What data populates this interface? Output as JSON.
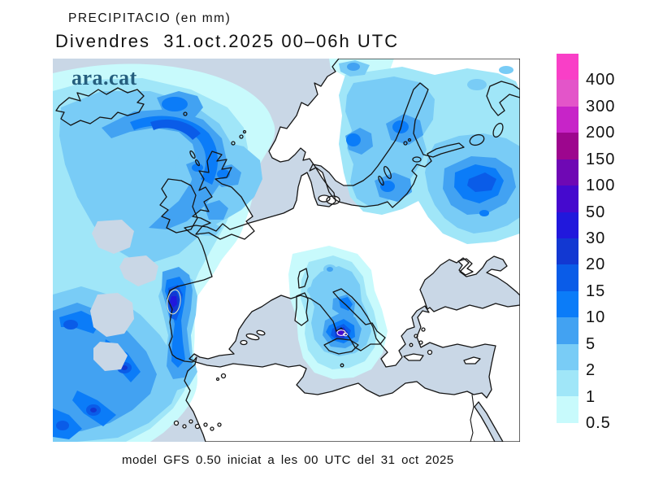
{
  "header": {
    "title_line1": "PRECIPITACIO (en mm)",
    "title_line2": "Divendres  31.oct.2025 00–06h UTC"
  },
  "footer": {
    "caption": "model GFS 0.50 iniciat a les 00 UTC del 31 oct 2025"
  },
  "map": {
    "watermark": "ara.cat",
    "watermark_color": "#255E7E",
    "sea_color": "#C9D7E6",
    "land_color": "#FFFFFF",
    "coast_color": "#151515",
    "contour_ring_color_low": "#E6E6C0",
    "contour_ring_color_high": "#FFFFFF"
  },
  "colorbar": {
    "units": "mm",
    "levels": [
      "400",
      "300",
      "200",
      "150",
      "100",
      "50",
      "30",
      "20",
      "15",
      "10",
      "5",
      "2",
      "1",
      "0.5"
    ],
    "segment_colors_top_to_bottom": [
      "#F93FC7",
      "#E355C9",
      "#C724C8",
      "#9D068E",
      "#6F08B4",
      "#4509CE",
      "#2118DC",
      "#1238D2",
      "#0A5CE8",
      "#0B7CF8",
      "#42A2F2",
      "#79CCF6",
      "#A0E6F8",
      "#C8FAFC"
    ],
    "level_colors": {
      "400": "#F93FC7",
      "300": "#E355C9",
      "200": "#C724C8",
      "150": "#9D068E",
      "100": "#6F08B4",
      "50": "#4509CE",
      "30": "#2118DC",
      "20": "#1238D2",
      "15": "#0A5CE8",
      "10": "#0B7CF8",
      "5": "#42A2F2",
      "2": "#79CCF6",
      "1": "#A0E6F8",
      "0.5": "#C8FAFC"
    }
  }
}
